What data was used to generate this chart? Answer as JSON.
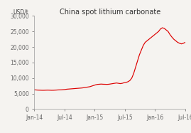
{
  "title": "China spot lithium carbonate",
  "ylabel": "USD/t",
  "background_color": "#f5f3f0",
  "line_color": "#dd0000",
  "ylim": [
    0,
    30000
  ],
  "yticks": [
    0,
    5000,
    10000,
    15000,
    20000,
    25000,
    30000
  ],
  "x_tick_labels": [
    "Jan-14",
    "Jul-14",
    "Jan-15",
    "Jul-15",
    "Jan-16",
    "Jul-16"
  ],
  "x_tick_positions": [
    0,
    6,
    12,
    18,
    24,
    30
  ],
  "xlim": [
    0,
    30
  ],
  "series": [
    6200,
    6150,
    6100,
    6080,
    6050,
    6050,
    6080,
    6100,
    6080,
    6050,
    6060,
    6100,
    6150,
    6180,
    6200,
    6250,
    6300,
    6400,
    6450,
    6500,
    6550,
    6600,
    6650,
    6700,
    6750,
    6800,
    6900,
    7000,
    7100,
    7200,
    7400,
    7600,
    7800,
    7950,
    8000,
    8050,
    8000,
    7980,
    7950,
    8000,
    8100,
    8200,
    8300,
    8400,
    8300,
    8200,
    8300,
    8500,
    8600,
    8800,
    9200,
    10000,
    11500,
    13500,
    15500,
    17500,
    19000,
    20500,
    21500,
    22000,
    22500,
    23000,
    23500,
    24000,
    24500,
    25000,
    25800,
    26200,
    26000,
    25500,
    25000,
    24000,
    23200,
    22500,
    22000,
    21500,
    21200,
    21000,
    21200,
    21500
  ],
  "title_fontsize": 7,
  "tick_fontsize": 5.5,
  "ylabel_fontsize": 5.5
}
